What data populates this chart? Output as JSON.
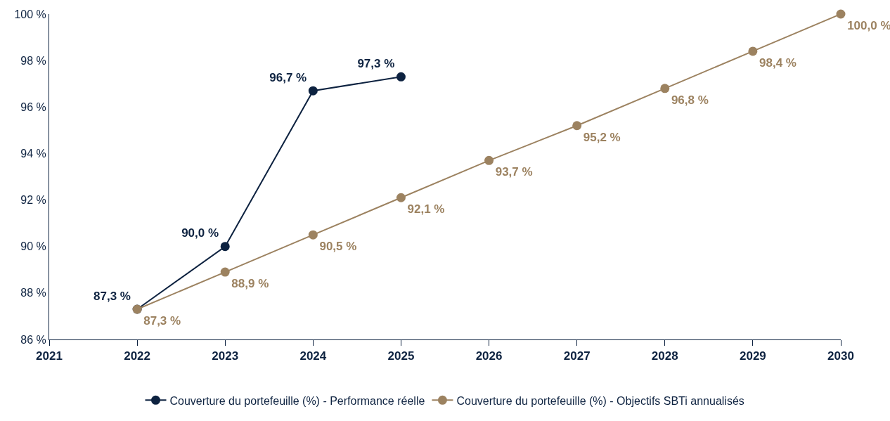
{
  "chart_data": {
    "type": "line",
    "x": [
      2022,
      2023,
      2024,
      2025,
      2026,
      2027,
      2028,
      2029,
      2030
    ],
    "series": [
      {
        "name": "Couverture du portefeuille (%) - Performance réelle",
        "color": "#0d2240",
        "values": [
          87.3,
          90.0,
          96.7,
          97.3,
          null,
          null,
          null,
          null,
          null
        ],
        "value_labels": [
          "87,3 %",
          "90,0 %",
          "96,7 %",
          "97,3 %",
          null,
          null,
          null,
          null,
          null
        ]
      },
      {
        "name": "Couverture du portefeuille (%) - Objectifs SBTi annualisés",
        "color": "#9c8260",
        "values": [
          87.3,
          88.9,
          90.5,
          92.1,
          93.7,
          95.2,
          96.8,
          98.4,
          100.0
        ],
        "value_labels": [
          "87,3 %",
          "88,9 %",
          "90,5 %",
          "92,1 %",
          "93,7 %",
          "95,2 %",
          "96,8 %",
          "98,4 %",
          "100,0 %"
        ]
      }
    ],
    "xlim": [
      2021,
      2030
    ],
    "xticks": [
      2021,
      2022,
      2023,
      2024,
      2025,
      2026,
      2027,
      2028,
      2029,
      2030
    ],
    "ylim": [
      86,
      100
    ],
    "yticks": [
      {
        "value": 86,
        "label": "86 %"
      },
      {
        "value": 88,
        "label": "88 %"
      },
      {
        "value": 90,
        "label": "90 %"
      },
      {
        "value": 92,
        "label": "92 %"
      },
      {
        "value": 94,
        "label": "94 %"
      },
      {
        "value": 96,
        "label": "96 %"
      },
      {
        "value": 98,
        "label": "98 %"
      },
      {
        "value": 100,
        "label": "100 %"
      }
    ],
    "legend": "bottom",
    "marker": "circle",
    "line_style": "solid",
    "grid": false
  }
}
